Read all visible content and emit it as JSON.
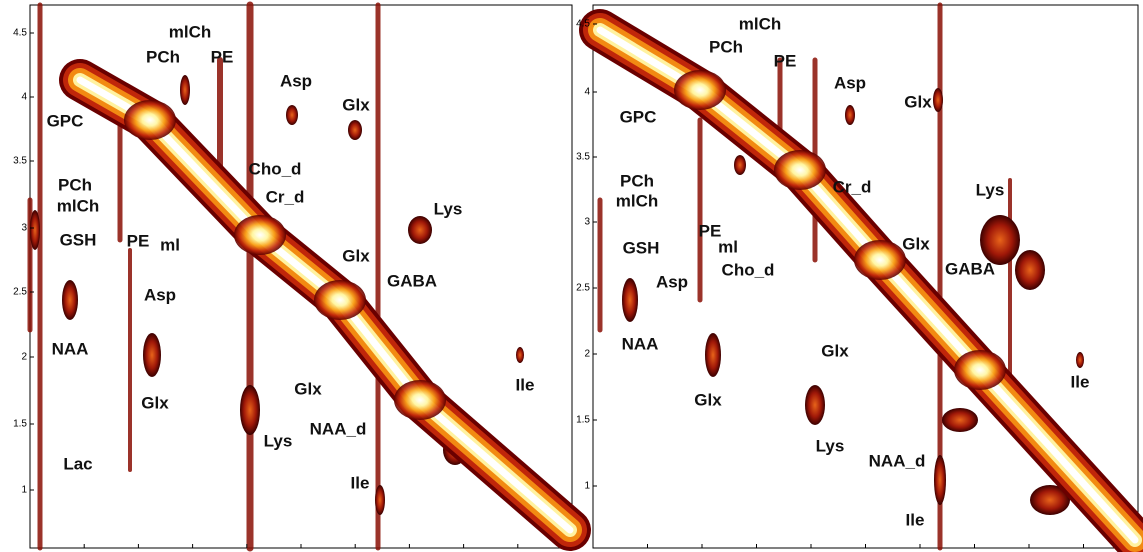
{
  "panels": [
    {
      "yticks": [
        "4.5",
        "4",
        "3.5",
        "3",
        "2.5",
        "2",
        "1.5",
        "1"
      ],
      "labels": [
        "GPC",
        "PCh",
        "mlCh",
        "GSH",
        "PE",
        "ml",
        "Asp",
        "NAA",
        "Glx",
        "Lac",
        "PCh",
        "mlCh",
        "PE",
        "Asp",
        "Glx",
        "Cho_d",
        "Cr_d",
        "Lys",
        "Glx",
        "GABA",
        "Glx",
        "Lys",
        "NAA_d",
        "Ile",
        "Ile"
      ]
    },
    {
      "yticks": [
        "4.5",
        "4",
        "3.5",
        "3",
        "2.5",
        "2",
        "1.5",
        "1"
      ],
      "labels": [
        "PCh",
        "mlCh",
        "PE",
        "Asp",
        "Glx",
        "GPC",
        "PCh",
        "mlCh",
        "GSH",
        "PE",
        "ml",
        "Cho_d",
        "Cr_d",
        "Lys",
        "Glx",
        "GABA",
        "Asp",
        "NAA",
        "Glx",
        "Glx",
        "Lys",
        "NAA_d",
        "Ile",
        "Ile"
      ]
    }
  ]
}
